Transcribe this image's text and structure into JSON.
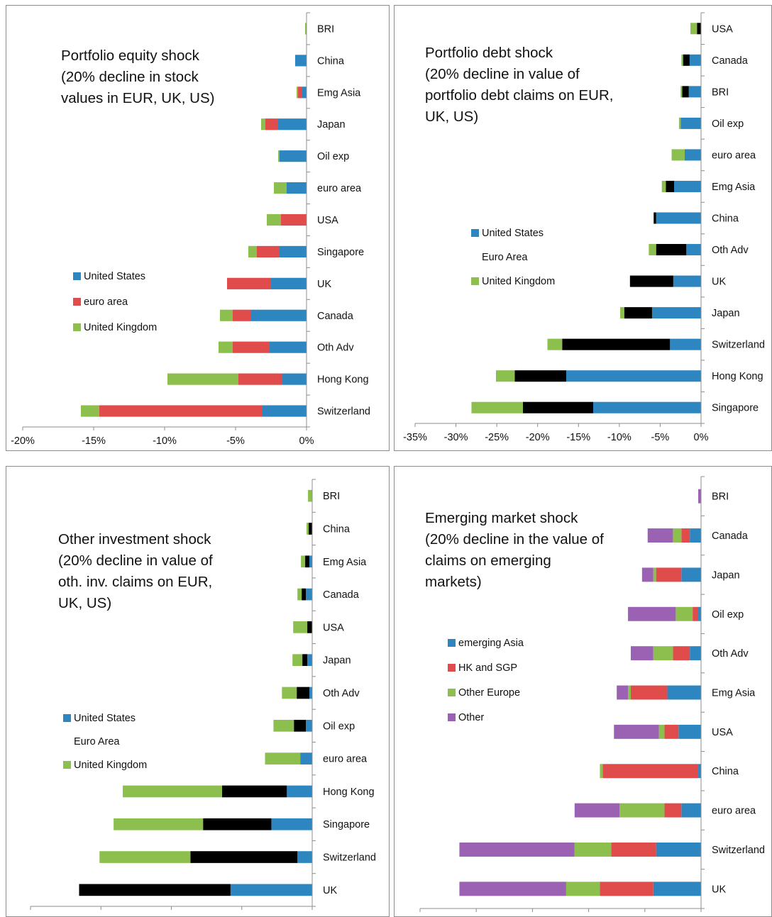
{
  "colors": {
    "United States": "#2e86c1",
    "euro area": "#e04b4b",
    "United Kingdom": "#8dbf4f",
    "emerging Asia": "#2e86c1",
    "HK and SGP": "#e04b4b",
    "Other Europe": "#8dbf4f",
    "Other": "#9b62b3"
  },
  "chart_data": [
    {
      "type": "bar",
      "orientation": "horizontal",
      "stacked": true,
      "title": [
        "Portfolio equity  shock",
        "(20% decline in stock",
        "values in EUR, UK, US)"
      ],
      "categories": [
        "BRI",
        "China",
        "Emg Asia",
        "Japan",
        "Oil exp",
        "euro area",
        "USA",
        "Singapore",
        "UK",
        "Canada",
        "Oth Adv",
        "Hong Kong",
        "Switzerland"
      ],
      "series": [
        {
          "name": "United States",
          "values": [
            0,
            -0.8,
            -0.3,
            -2.0,
            -1.9,
            -1.4,
            0,
            -1.9,
            -2.5,
            -3.9,
            -2.6,
            -1.7,
            -3.1
          ]
        },
        {
          "name": "euro area",
          "values": [
            0,
            0,
            -0.3,
            -0.9,
            0,
            0,
            -1.8,
            -1.6,
            -3.1,
            -1.3,
            -2.6,
            -3.1,
            -11.5
          ]
        },
        {
          "name": "United Kingdom",
          "values": [
            -0.1,
            0,
            -0.1,
            -0.3,
            -0.1,
            -0.9,
            -1.0,
            -0.6,
            0,
            -0.9,
            -1.0,
            -5.0,
            -1.3
          ]
        }
      ],
      "xlim": [
        -20,
        0
      ],
      "xticks": [
        "-20%",
        "-15%",
        "-10%",
        "-5%",
        "0%"
      ],
      "legend": [
        "United States",
        "euro area",
        "United Kingdom"
      ]
    },
    {
      "type": "bar",
      "orientation": "horizontal",
      "stacked": true,
      "title": [
        "Portfolio debt shock",
        "(20% decline in value of",
        "portfolio debt claims on EUR,",
        "UK, US)"
      ],
      "categories": [
        "USA",
        "Canada",
        "BRI",
        "Oil exp",
        "euro area",
        "Emg Asia",
        "China",
        "Oth Adv",
        "UK",
        "Japan",
        "Switzerland",
        "Hong Kong",
        "Singapore"
      ],
      "series": [
        {
          "name": "United States",
          "values": [
            0,
            -1.4,
            -1.5,
            -2.5,
            -2.0,
            -3.3,
            -5.5,
            -1.8,
            -3.4,
            -6.0,
            -3.8,
            -16.5,
            -13.2
          ]
        },
        {
          "name": "Euro Area",
          "values": [
            -0.5,
            -0.8,
            -0.8,
            0,
            0,
            -1.0,
            -0.3,
            -3.7,
            -5.3,
            -3.4,
            -13.2,
            -6.3,
            -8.6
          ]
        },
        {
          "name": "United Kingdom",
          "values": [
            -0.8,
            -0.2,
            -0.2,
            -0.2,
            -1.6,
            -0.5,
            0,
            -0.9,
            0,
            -0.5,
            -1.8,
            -2.3,
            -6.3
          ]
        }
      ],
      "xlim": [
        -35,
        0
      ],
      "xticks": [
        "-35%",
        "-30%",
        "-25%",
        "-20%",
        "-15%",
        "-10%",
        "-5%",
        "0%"
      ],
      "legend": [
        "United States",
        "Euro Area",
        "United Kingdom"
      ]
    },
    {
      "type": "bar",
      "orientation": "horizontal",
      "stacked": true,
      "title": [
        "Other investment shock",
        "(20% decline in value of",
        "oth. inv. claims on EUR,",
        "UK, US)"
      ],
      "categories": [
        "BRI",
        "China",
        "Emg Asia",
        "Canada",
        "USA",
        "Japan",
        "Oth Adv",
        "Oil exp",
        "euro area",
        "Hong Kong",
        "Singapore",
        "Switzerland",
        "UK"
      ],
      "series": [
        {
          "name": "United States",
          "values": [
            0,
            0,
            -0.4,
            -0.9,
            0,
            -0.7,
            -0.4,
            -0.9,
            -1.7,
            -3.6,
            -5.8,
            -2.1,
            -11.6
          ]
        },
        {
          "name": "Euro Area",
          "values": [
            0,
            -0.5,
            -0.6,
            -0.6,
            -0.7,
            -0.7,
            -1.8,
            -1.7,
            0,
            -9.2,
            -9.7,
            -15.2,
            -21.5
          ]
        },
        {
          "name": "United Kingdom",
          "values": [
            -0.6,
            -0.3,
            -0.6,
            -0.6,
            -2.0,
            -1.4,
            -2.1,
            -2.9,
            -5.0,
            -14.1,
            -12.7,
            -12.9,
            0
          ]
        }
      ],
      "xlim": [
        -40,
        0
      ],
      "xticks": [
        "-40%",
        "-30%",
        "-20%",
        "-10%",
        "0%"
      ],
      "legend": [
        "United States",
        "Euro Area",
        "United Kingdom"
      ]
    },
    {
      "type": "bar",
      "orientation": "horizontal",
      "stacked": true,
      "title": [
        "Emerging market shock",
        "(20% decline in the value of",
        "claims on emerging",
        "markets)"
      ],
      "categories": [
        "BRI",
        "Canada",
        "Japan",
        "Oil exp",
        "Oth Adv",
        "Emg Asia",
        "USA",
        "China",
        "euro area",
        "Switzerland",
        "UK"
      ],
      "series": [
        {
          "name": "emerging Asia",
          "values": [
            0,
            -0.4,
            -0.7,
            -0.1,
            -0.4,
            -1.2,
            -0.8,
            -0.1,
            -0.7,
            -1.6,
            -1.7
          ]
        },
        {
          "name": "HK and SGP",
          "values": [
            0,
            -0.3,
            -0.9,
            -0.2,
            -0.6,
            -1.3,
            -0.5,
            -3.4,
            -0.6,
            -1.6,
            -1.9
          ]
        },
        {
          "name": "Other Europe",
          "values": [
            0,
            -0.3,
            -0.1,
            -0.6,
            -0.7,
            -0.1,
            -0.2,
            -0.1,
            -1.6,
            -1.3,
            -1.2
          ]
        },
        {
          "name": "Other",
          "values": [
            -0.1,
            -0.9,
            -0.4,
            -1.7,
            -0.8,
            -0.4,
            -1.6,
            0,
            -1.6,
            -4.1,
            -3.8
          ]
        }
      ],
      "xlim": [
        -10,
        0
      ],
      "xticks": [
        "-10%",
        "-8%",
        "-6%",
        "-4%",
        "-2%",
        "0%"
      ],
      "legend": [
        "emerging Asia",
        "HK and SGP",
        "Other Europe",
        "Other"
      ]
    }
  ]
}
